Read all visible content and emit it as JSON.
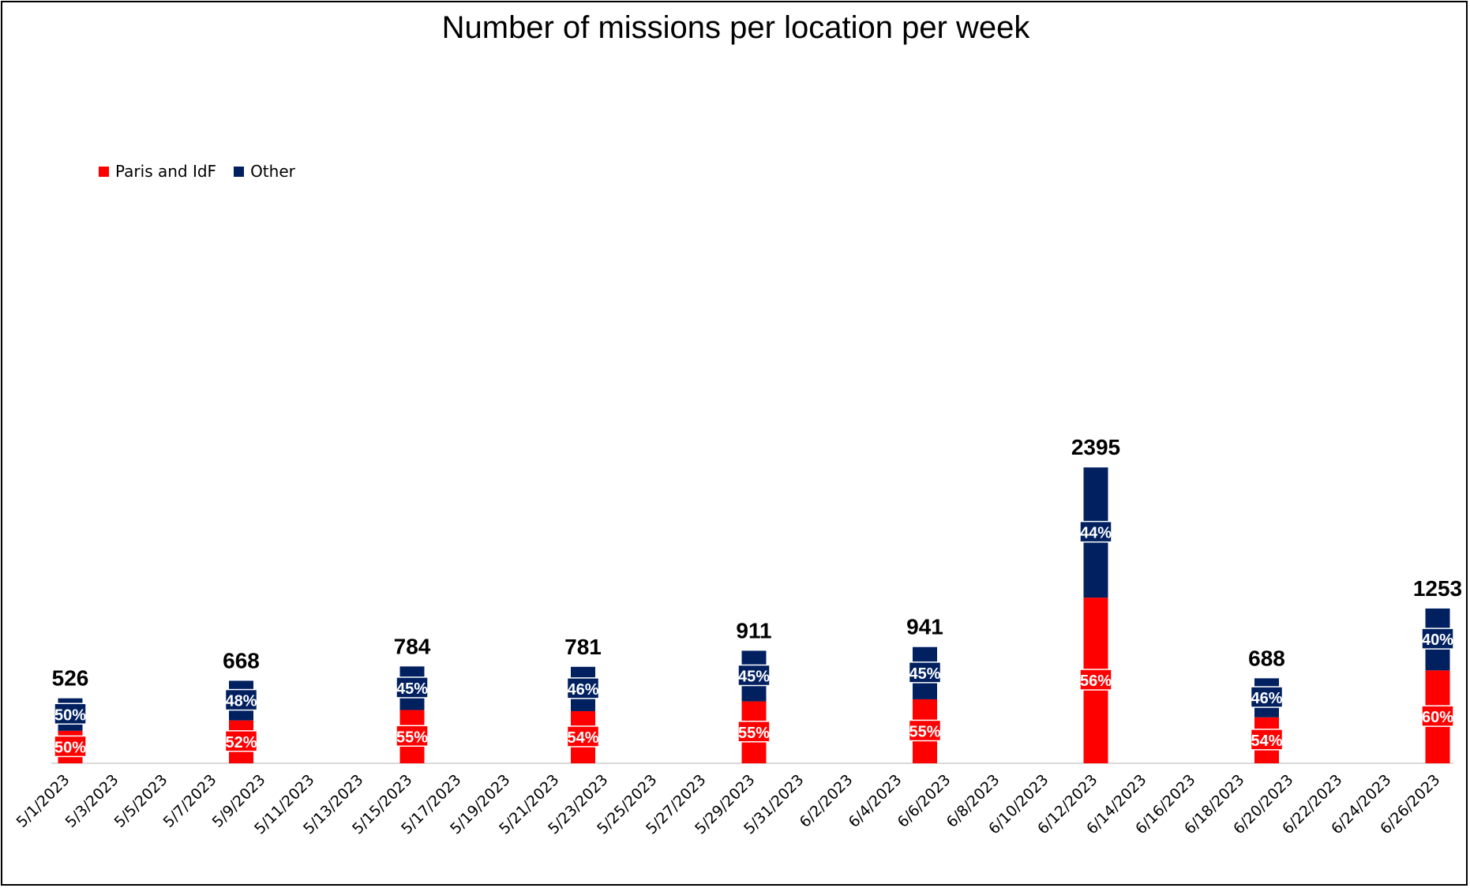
{
  "chart_data": {
    "type": "bar",
    "stacked": true,
    "title": "Number of missions per location per week",
    "x_tick_labels": [
      "5/1/2023",
      "5/3/2023",
      "5/5/2023",
      "5/7/2023",
      "5/9/2023",
      "5/11/2023",
      "5/13/2023",
      "5/15/2023",
      "5/17/2023",
      "5/19/2023",
      "5/21/2023",
      "5/23/2023",
      "5/25/2023",
      "5/27/2023",
      "5/29/2023",
      "5/31/2023",
      "6/2/2023",
      "6/4/2023",
      "6/6/2023",
      "6/8/2023",
      "6/10/2023",
      "6/12/2023",
      "6/14/2023",
      "6/16/2023",
      "6/18/2023",
      "6/20/2023",
      "6/22/2023",
      "6/24/2023",
      "6/26/2023"
    ],
    "categories": [
      "5/1/2023",
      "5/8/2023",
      "5/15/2023",
      "5/22/2023",
      "5/29/2023",
      "6/5/2023",
      "6/12/2023",
      "6/19/2023",
      "6/26/2023"
    ],
    "totals": [
      526,
      668,
      784,
      781,
      911,
      941,
      2395,
      688,
      1253
    ],
    "series": [
      {
        "name": "Paris and IdF",
        "color": "#ff0000",
        "values": [
          263,
          347,
          431,
          422,
          501,
          518,
          1341,
          372,
          752
        ],
        "pct_labels": [
          "50%",
          "52%",
          "55%",
          "54%",
          "55%",
          "55%",
          "56%",
          "54%",
          "60%"
        ]
      },
      {
        "name": "Other",
        "color": "#002060",
        "values": [
          263,
          321,
          353,
          359,
          410,
          423,
          1054,
          316,
          501
        ],
        "pct_labels": [
          "50%",
          "48%",
          "45%",
          "46%",
          "45%",
          "45%",
          "44%",
          "46%",
          "40%"
        ]
      }
    ],
    "legend_position": "top-left",
    "y_axis_visible": false,
    "grid": false,
    "ylim": [
      0,
      6000
    ]
  }
}
